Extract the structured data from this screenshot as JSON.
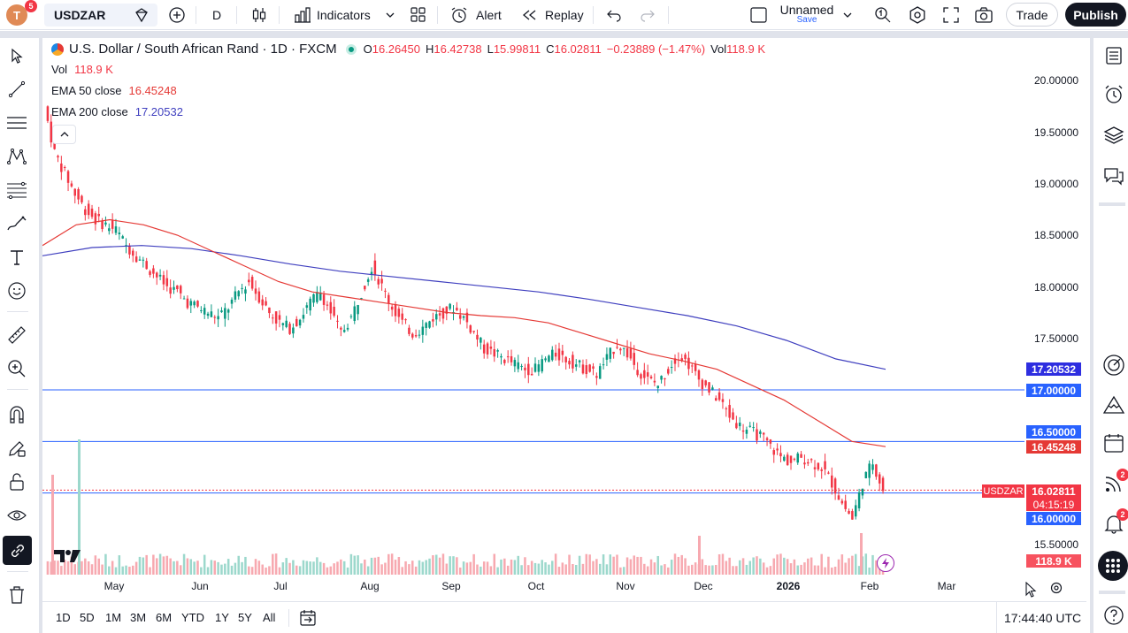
{
  "header": {
    "avatar_letter": "T",
    "avatar_badge": "5",
    "symbol": "USDZAR",
    "interval": "D",
    "indicators_label": "Indicators",
    "alert_label": "Alert",
    "replay_label": "Replay",
    "layout_name": "Unnamed",
    "layout_sub": "Save",
    "trade_label": "Trade",
    "publish_label": "Publish"
  },
  "legend": {
    "title": "U.S. Dollar / South African Rand · 1D · FXCM",
    "o_label": "O",
    "o_value": "16.26450",
    "h_label": "H",
    "h_value": "16.42738",
    "l_label": "L",
    "l_value": "15.99811",
    "c_label": "C",
    "c_value": "16.02811",
    "change": "−0.23889 (−1.47%)",
    "vol_label": "Vol",
    "vol_value": "118.9 K",
    "vol_row_label": "Vol",
    "vol_row_value": "118.9 K",
    "ema50_label": "EMA 50 close",
    "ema50_value": "16.45248",
    "ema200_label": "EMA 200 close",
    "ema200_value": "17.20532"
  },
  "price_axis": {
    "ticks": [
      "20.00000",
      "19.50000",
      "19.00000",
      "18.50000",
      "18.00000",
      "17.50000",
      "15.50000"
    ],
    "ema200_tag": "17.20532",
    "line17_tag": "17.00000",
    "line165_tag": "16.50000",
    "ema50_tag": "16.45248",
    "symbol_tag": "USDZAR",
    "last_price_tag": "16.02811",
    "countdown_tag": "04:15:19",
    "line16_tag": "16.00000",
    "volume_tag": "118.9 K"
  },
  "time_axis": {
    "months": [
      "May",
      "Jun",
      "Jul",
      "Aug",
      "Sep",
      "Oct",
      "Nov",
      "Dec",
      "2026",
      "Feb",
      "Mar"
    ]
  },
  "bottom": {
    "timeframes": [
      "1D",
      "5D",
      "1M",
      "3M",
      "6M",
      "YTD",
      "1Y",
      "5Y",
      "All"
    ],
    "clock": "17:44:40 UTC"
  },
  "right_badges": {
    "feed": "2",
    "notifications": "2"
  },
  "colors": {
    "up": "#089981",
    "down": "#f23645",
    "ema50": "#e53935",
    "ema200": "#3f3fbf",
    "hline": "#2962ff",
    "accent": "#2962ff"
  },
  "chart_data": {
    "type": "candlestick",
    "symbol": "USDZAR",
    "interval": "1D",
    "ylim": [
      15.3,
      20.3
    ],
    "horizontal_lines": [
      17.0,
      16.5,
      16.0
    ],
    "ohlc_approx_closes": [
      19.75,
      19.3,
      19.1,
      18.9,
      18.75,
      18.65,
      18.6,
      18.55,
      18.4,
      18.3,
      18.2,
      18.1,
      18.0,
      17.95,
      17.85,
      17.8,
      17.75,
      17.7,
      17.8,
      17.95,
      18.05,
      17.9,
      17.75,
      17.65,
      17.6,
      17.7,
      17.85,
      17.95,
      17.75,
      17.55,
      17.7,
      17.95,
      18.2,
      18.0,
      17.8,
      17.65,
      17.55,
      17.6,
      17.7,
      17.75,
      17.8,
      17.7,
      17.55,
      17.4,
      17.35,
      17.3,
      17.25,
      17.2,
      17.2,
      17.3,
      17.35,
      17.3,
      17.25,
      17.2,
      17.15,
      17.3,
      17.45,
      17.35,
      17.2,
      17.1,
      17.05,
      17.2,
      17.35,
      17.25,
      17.1,
      17.0,
      16.9,
      16.75,
      16.65,
      16.6,
      16.55,
      16.45,
      16.35,
      16.3,
      16.35,
      16.3,
      16.25,
      16.1,
      15.9,
      15.75,
      16.1,
      16.3,
      16.03
    ],
    "ema50": [
      18.4,
      18.6,
      18.65,
      18.6,
      18.5,
      18.35,
      18.2,
      18.05,
      17.95,
      17.9,
      17.85,
      17.8,
      17.75,
      17.72,
      17.7,
      17.65,
      17.55,
      17.45,
      17.35,
      17.28,
      17.2,
      17.05,
      16.9,
      16.7,
      16.5,
      16.45
    ],
    "ema200": [
      18.3,
      18.38,
      18.4,
      18.37,
      18.3,
      18.22,
      18.15,
      18.1,
      18.05,
      18.0,
      17.95,
      17.88,
      17.8,
      17.72,
      17.62,
      17.48,
      17.3,
      17.2
    ],
    "volume_last": "118.9 K"
  }
}
